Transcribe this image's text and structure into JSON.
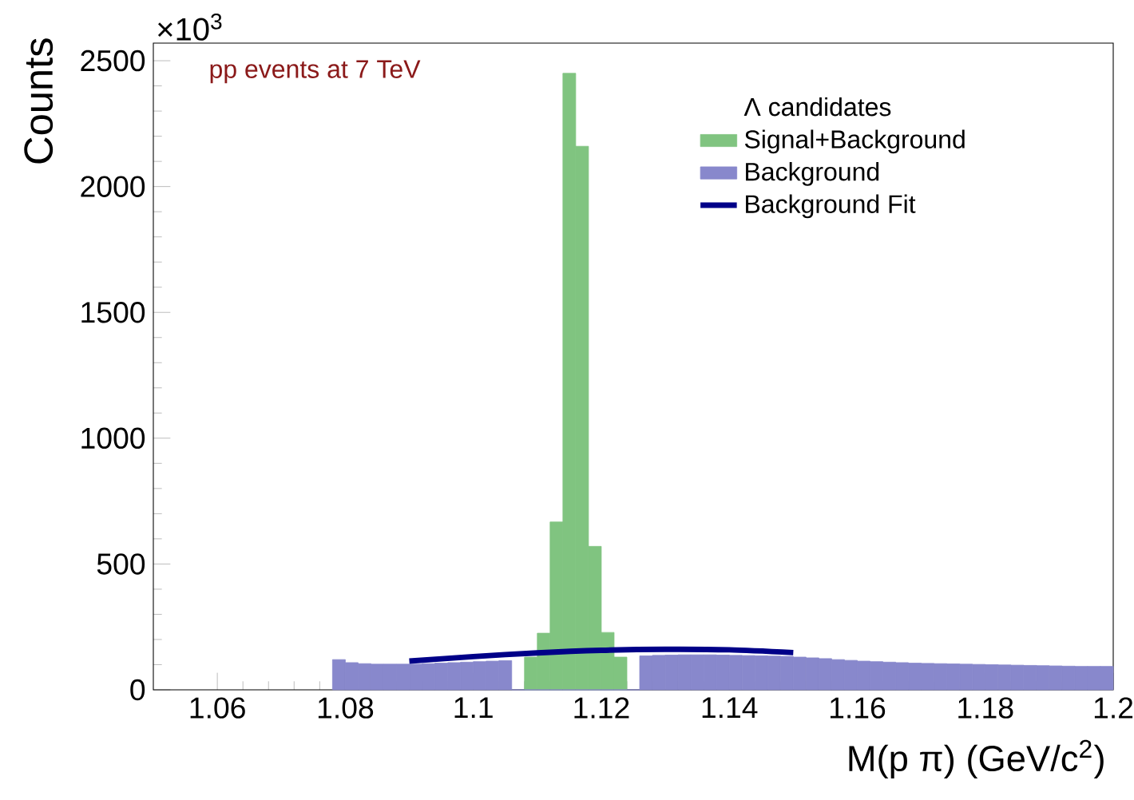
{
  "chart_data": {
    "type": "histogram",
    "xlabel": "M(p π) (GeV/c$^{2}$)",
    "ylabel": "Counts",
    "legend_title": "Λ  candidates",
    "annotations": [
      "pp events at 7 TeV",
      "×10$^{3}$"
    ],
    "xlim": [
      1.05,
      1.2
    ],
    "ylim": [
      0,
      2570
    ],
    "xticks": [
      1.06,
      1.08,
      1.1,
      1.12,
      1.14,
      1.16,
      1.18,
      1.2
    ],
    "yticks": [
      0,
      500,
      1000,
      1500,
      2000,
      2500
    ],
    "legend": "top right",
    "grid": false,
    "series": [
      {
        "name": "Signal+Background",
        "color": "#80c480",
        "bins": [
          1.108,
          1.11,
          1.112,
          1.114,
          1.116,
          1.118,
          1.12,
          1.122,
          1.124
        ],
        "values": [
          130,
          225,
          667,
          2450,
          2160,
          570,
          228,
          130
        ]
      },
      {
        "name": "Background",
        "color": "#8888cc",
        "bins": [
          1.078,
          1.08,
          1.082,
          1.084,
          1.086,
          1.088,
          1.09,
          1.092,
          1.094,
          1.096,
          1.098,
          1.1,
          1.102,
          1.104,
          1.106,
          1.108,
          1.11,
          1.112,
          1.114,
          1.116,
          1.118,
          1.12,
          1.122,
          1.124,
          1.126,
          1.128,
          1.13,
          1.132,
          1.134,
          1.136,
          1.138,
          1.14,
          1.142,
          1.144,
          1.146,
          1.148,
          1.15,
          1.152,
          1.154,
          1.156,
          1.158,
          1.16,
          1.162,
          1.164,
          1.166,
          1.168,
          1.17,
          1.172,
          1.174,
          1.176,
          1.178,
          1.18,
          1.182,
          1.184,
          1.186,
          1.188,
          1.19,
          1.192,
          1.194,
          1.196,
          1.198,
          1.2
        ],
        "values": [
          120,
          108,
          104,
          102,
          102,
          102,
          102,
          104,
          106,
          108,
          110,
          112,
          114,
          116,
          0,
          0,
          0,
          0,
          0,
          0,
          0,
          0,
          0,
          0,
          135,
          137,
          138,
          139,
          139,
          139,
          138,
          137,
          136,
          135,
          134,
          133,
          130,
          127,
          124,
          120,
          117,
          114,
          112,
          110,
          108,
          106,
          105,
          104,
          103,
          102,
          101,
          100,
          99,
          98,
          97,
          96,
          95,
          94,
          93,
          93,
          93
        ]
      },
      {
        "name": "Background Fit",
        "type": "line",
        "color": "#000088",
        "x": [
          1.09,
          1.1,
          1.11,
          1.12,
          1.13,
          1.14,
          1.15
        ],
        "values": [
          114,
          132,
          147,
          157,
          161,
          159,
          148
        ]
      }
    ]
  }
}
